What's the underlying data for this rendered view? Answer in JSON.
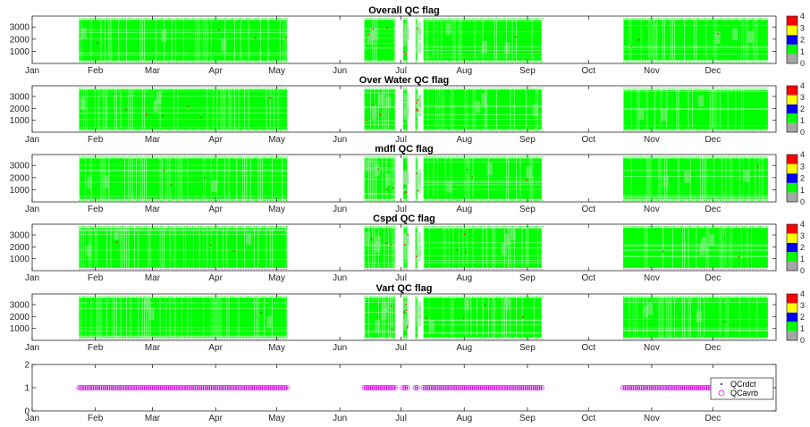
{
  "chart_data": [
    {
      "type": "heatmap",
      "title": "Overall QC flag",
      "x_ticks": [
        "Jan",
        "Feb",
        "Mar",
        "Apr",
        "May",
        "Jun",
        "Jul",
        "Aug",
        "Sep",
        "Oct",
        "Nov",
        "Dec"
      ],
      "y_ticks": [
        1000,
        2000,
        3000
      ],
      "ylim": [
        0,
        3900
      ],
      "colorbar": {
        "ticks": [
          0,
          1,
          2,
          3,
          4
        ],
        "colors": [
          "#a6a6a6",
          "#00ff00",
          "#0000ff",
          "#ffff00",
          "#ff0000"
        ]
      },
      "dominant_flag": 1
    },
    {
      "type": "heatmap",
      "title": "Over Water QC flag",
      "x_ticks": [
        "Jan",
        "Feb",
        "Mar",
        "Apr",
        "May",
        "Jun",
        "Jul",
        "Aug",
        "Sep",
        "Oct",
        "Nov",
        "Dec"
      ],
      "y_ticks": [
        1000,
        2000,
        3000
      ],
      "ylim": [
        0,
        3900
      ],
      "colorbar": {
        "ticks": [
          0,
          1,
          2,
          3,
          4
        ],
        "colors": [
          "#a6a6a6",
          "#00ff00",
          "#0000ff",
          "#ffff00",
          "#ff0000"
        ]
      },
      "dominant_flag": 1
    },
    {
      "type": "heatmap",
      "title": "mdfl QC flag",
      "x_ticks": [
        "Jan",
        "Feb",
        "Mar",
        "Apr",
        "May",
        "Jun",
        "Jul",
        "Aug",
        "Sep",
        "Oct",
        "Nov",
        "Dec"
      ],
      "y_ticks": [
        1000,
        2000,
        3000
      ],
      "ylim": [
        0,
        3900
      ],
      "colorbar": {
        "ticks": [
          0,
          1,
          2,
          3,
          4
        ],
        "colors": [
          "#a6a6a6",
          "#00ff00",
          "#0000ff",
          "#ffff00",
          "#ff0000"
        ]
      },
      "dominant_flag": 1
    },
    {
      "type": "heatmap",
      "title": "Cspd QC flag",
      "x_ticks": [
        "Jan",
        "Feb",
        "Mar",
        "Apr",
        "May",
        "Jun",
        "Jul",
        "Aug",
        "Sep",
        "Oct",
        "Nov",
        "Dec"
      ],
      "y_ticks": [
        1000,
        2000,
        3000
      ],
      "ylim": [
        0,
        3900
      ],
      "colorbar": {
        "ticks": [
          0,
          1,
          2,
          3,
          4
        ],
        "colors": [
          "#a6a6a6",
          "#00ff00",
          "#0000ff",
          "#ffff00",
          "#ff0000"
        ]
      },
      "dominant_flag": 1
    },
    {
      "type": "heatmap",
      "title": "Vart QC flag",
      "x_ticks": [
        "Jan",
        "Feb",
        "Mar",
        "Apr",
        "May",
        "Jun",
        "Jul",
        "Aug",
        "Sep",
        "Oct",
        "Nov",
        "Dec"
      ],
      "y_ticks": [
        1000,
        2000,
        3000
      ],
      "ylim": [
        0,
        3900
      ],
      "colorbar": {
        "ticks": [
          0,
          1,
          2,
          3,
          4
        ],
        "colors": [
          "#a6a6a6",
          "#00ff00",
          "#0000ff",
          "#ffff00",
          "#ff0000"
        ]
      },
      "dominant_flag": 1
    },
    {
      "type": "scatter",
      "title": "",
      "x_ticks": [
        "Jan",
        "Feb",
        "Mar",
        "Apr",
        "May",
        "Jun",
        "Jul",
        "Aug",
        "Sep",
        "Oct",
        "Nov",
        "Dec"
      ],
      "y_ticks": [
        0,
        1,
        2
      ],
      "ylim": [
        0,
        2
      ],
      "legend": {
        "placement": "bottom-right",
        "entries": [
          "QCrdct",
          "QCavrb"
        ]
      },
      "series": [
        {
          "name": "QCrdct",
          "marker": "dot",
          "color": "#00008b",
          "y": 1
        },
        {
          "name": "QCavrb",
          "marker": "circle",
          "color": "#ff00ff",
          "y": 1
        }
      ]
    }
  ],
  "data_segments_day_of_year": [
    [
      23,
      125
    ],
    [
      163,
      178
    ],
    [
      182,
      184
    ],
    [
      188,
      189
    ],
    [
      192,
      250
    ],
    [
      290,
      361
    ]
  ]
}
